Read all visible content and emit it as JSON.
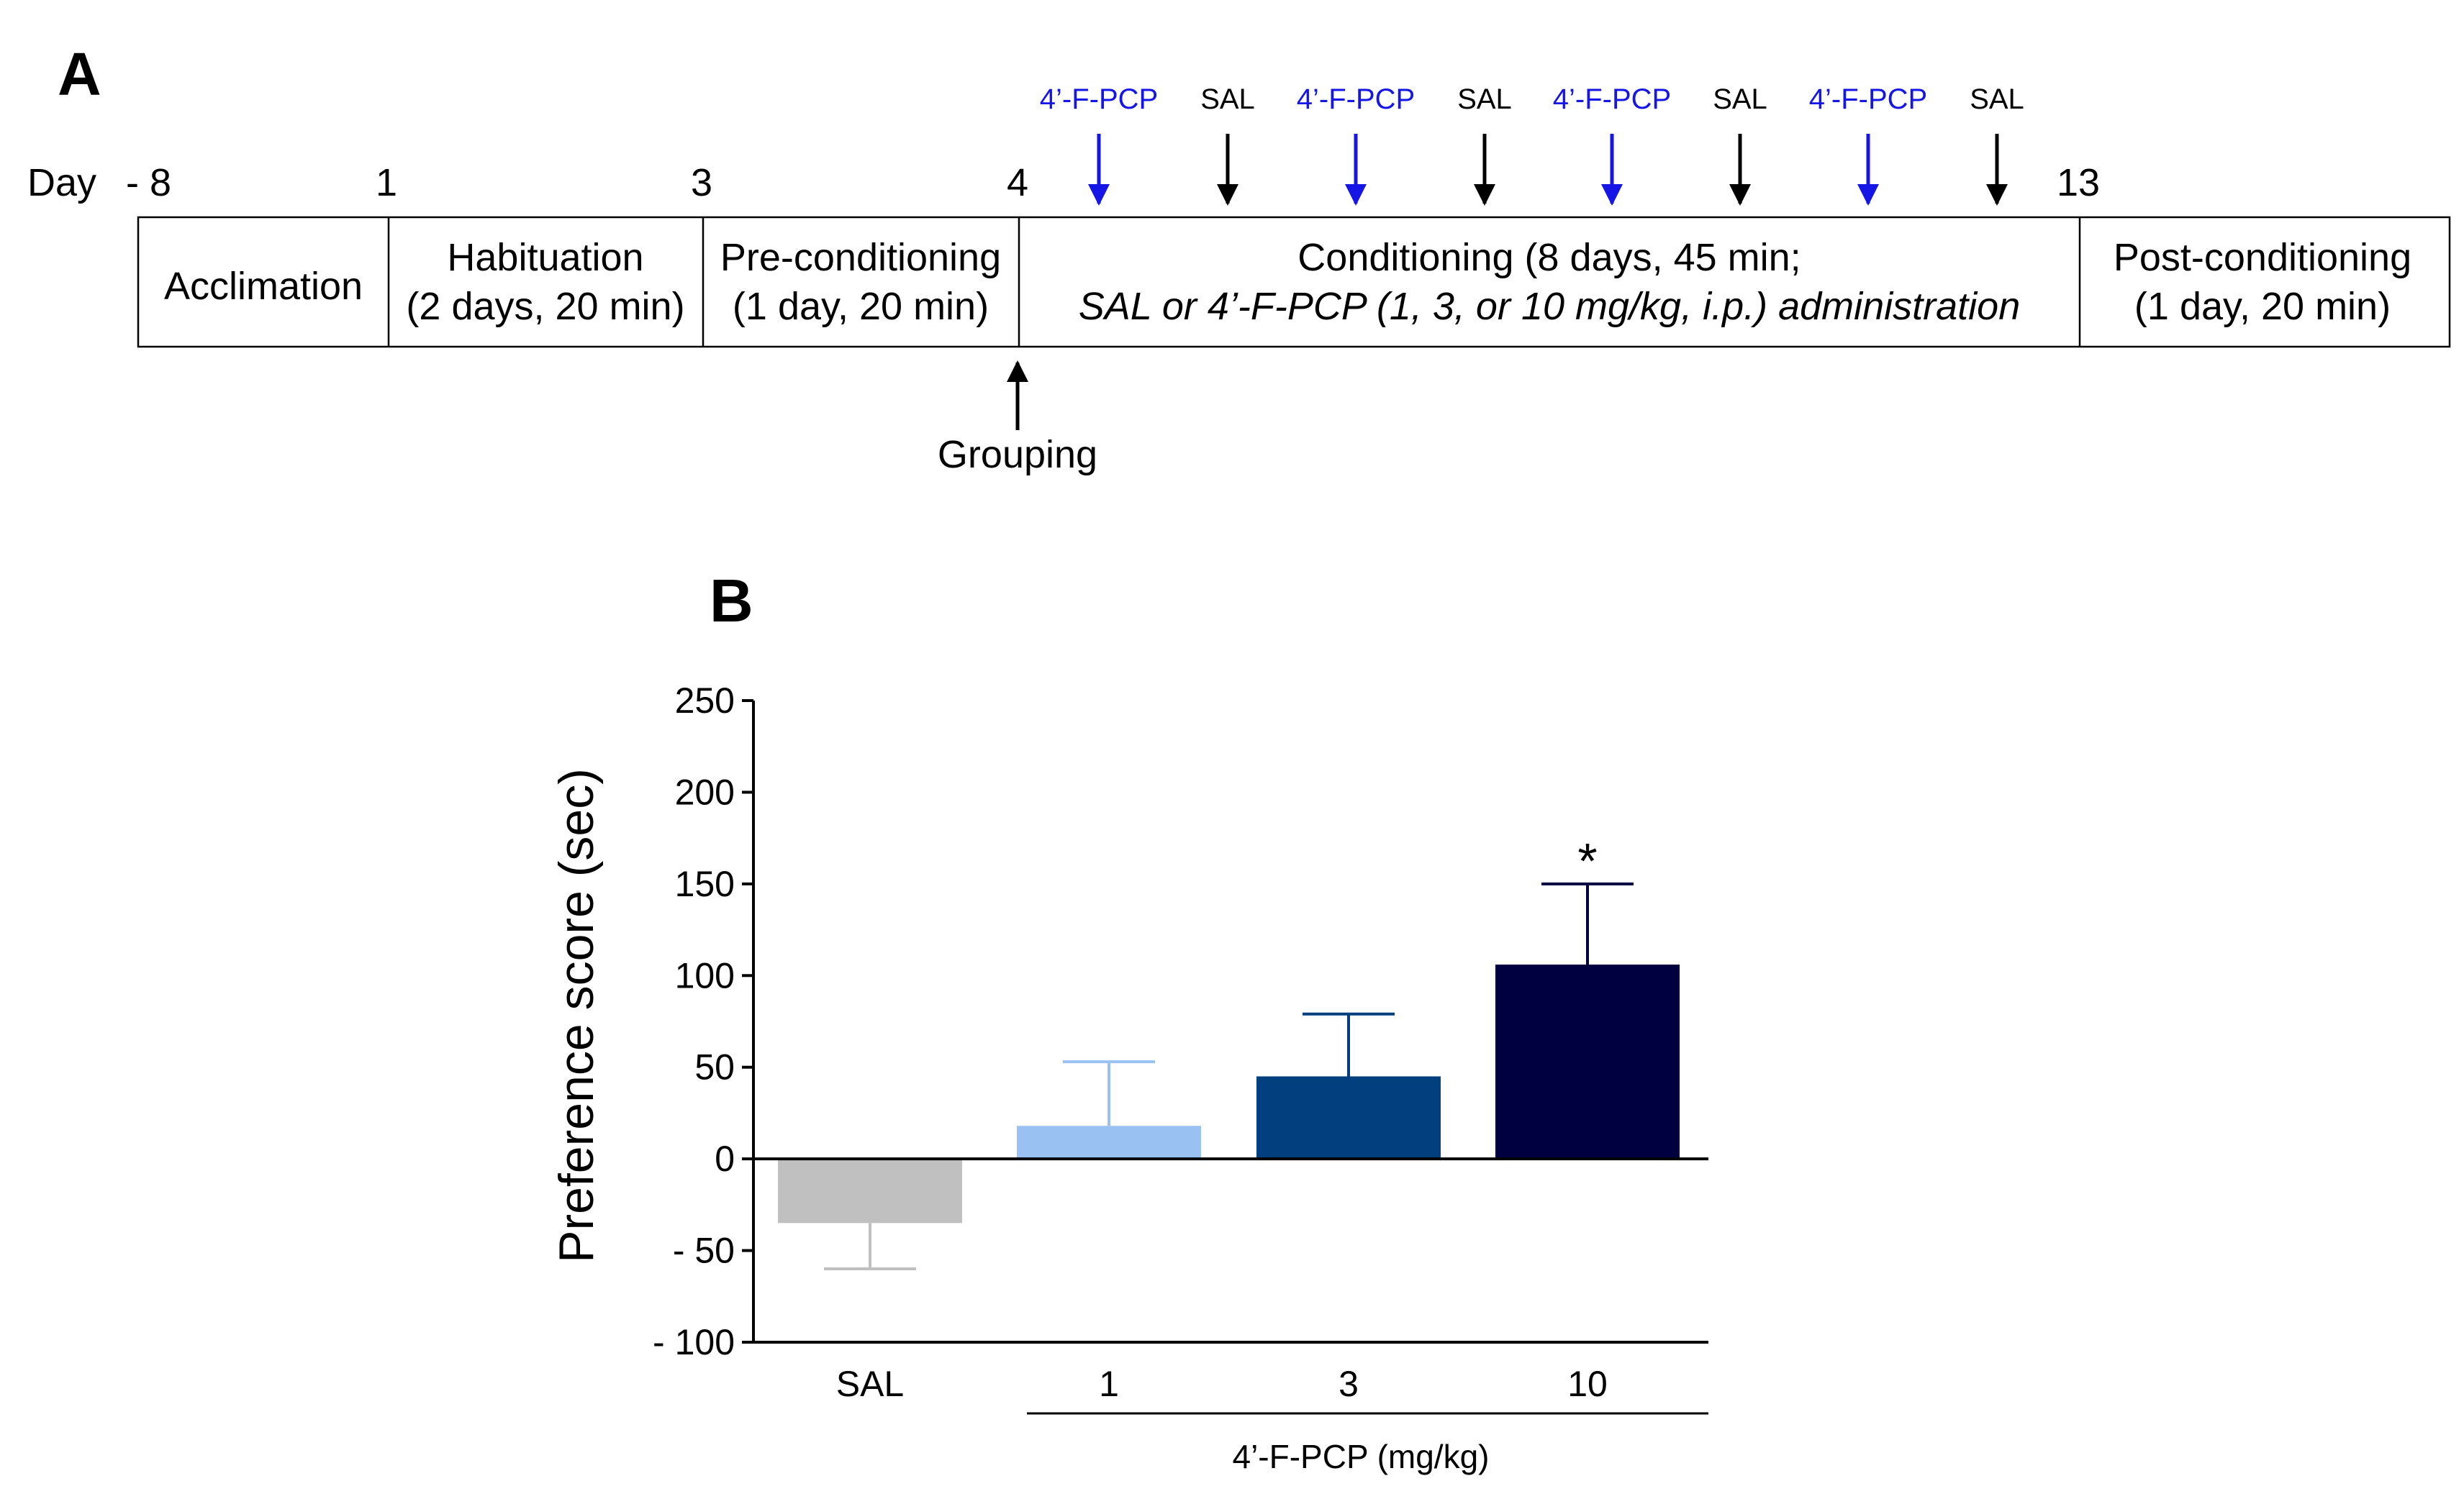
{
  "panel_a": {
    "label": "A",
    "day_prefix": "Day",
    "day_markers": [
      "- 8",
      "1",
      "3",
      "4",
      "13"
    ],
    "phases": [
      {
        "id": "acclimation",
        "lines": [
          "Acclimation"
        ]
      },
      {
        "id": "habituation",
        "lines": [
          "Habituation",
          "(2 days, 20 min)"
        ]
      },
      {
        "id": "pre-conditioning",
        "lines": [
          "Pre-conditioning",
          "(1 day, 20 min)"
        ]
      },
      {
        "id": "conditioning",
        "lines": [
          "Conditioning (8 days, 45 min;",
          "SAL or 4’-F-PCP (1, 3, or 10 mg/kg, i.p.) administration"
        ]
      },
      {
        "id": "post-conditioning",
        "lines": [
          "Post-conditioning",
          "(1 day, 20 min)"
        ]
      }
    ],
    "injections": [
      "4’-F-PCP",
      "SAL",
      "4’-F-PCP",
      "SAL",
      "4’-F-PCP",
      "SAL",
      "4’-F-PCP",
      "SAL"
    ],
    "grouping_label": "Grouping",
    "colors": {
      "drug": "#1515e6",
      "saline": "#000000"
    }
  },
  "panel_b": {
    "label": "B"
  },
  "chart_data": {
    "type": "bar",
    "title": "",
    "ylabel": "Preference score (sec)",
    "xlabel": "4’-F-PCP (mg/kg)",
    "categories": [
      "SAL",
      "1",
      "3",
      "10"
    ],
    "values": [
      -35,
      18,
      45,
      106
    ],
    "errors": [
      25,
      35,
      34,
      44
    ],
    "error_direction": [
      "down",
      "up",
      "up",
      "up"
    ],
    "significance": [
      "",
      "",
      "",
      "*"
    ],
    "colors": [
      "#c0c0c0",
      "#99c2f2",
      "#013f7f",
      "#000040"
    ],
    "ylim": [
      -100,
      250
    ],
    "yticks": [
      250,
      200,
      150,
      100,
      50,
      0,
      -50,
      -100
    ],
    "ytick_labels": [
      "250",
      "200",
      "150",
      "100",
      "50",
      "0",
      "- 50",
      "- 100"
    ],
    "grid": false
  }
}
